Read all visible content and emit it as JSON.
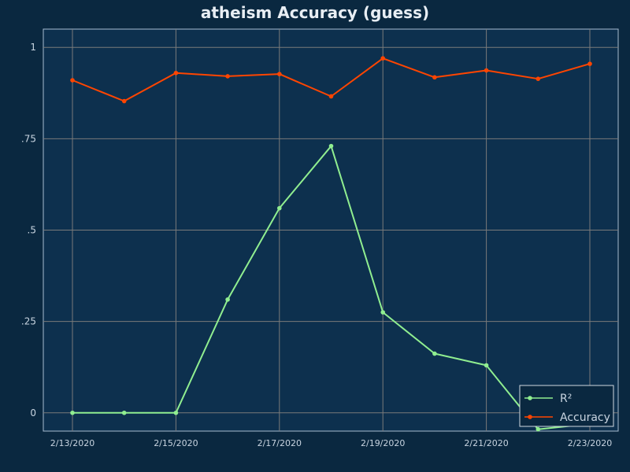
{
  "chart_data": {
    "type": "line",
    "title": "atheism Accuracy (guess)",
    "xlabel": "",
    "ylabel": "",
    "x": [
      "2/13/2020",
      "2/14/2020",
      "2/15/2020",
      "2/16/2020",
      "2/17/2020",
      "2/18/2020",
      "2/19/2020",
      "2/20/2020",
      "2/21/2020",
      "2/22/2020",
      "2/23/2020"
    ],
    "x_tick_labels": [
      "2/13/2020",
      "2/15/2020",
      "2/17/2020",
      "2/19/2020",
      "2/21/2020",
      "2/23/2020"
    ],
    "y_tick_values": [
      0,
      0.25,
      0.5,
      0.75,
      1
    ],
    "y_tick_labels": [
      "0",
      ".25",
      ".5",
      ".75",
      "1"
    ],
    "ylim": [
      -0.05,
      1.05
    ],
    "grid": true,
    "legend_position": "bottom-right",
    "series": [
      {
        "name": "R²",
        "color": "#90ee90",
        "values": [
          0,
          0,
          0,
          0.31,
          0.56,
          0.73,
          0.275,
          0.162,
          0.13,
          -0.045,
          -0.03
        ]
      },
      {
        "name": "Accuracy",
        "color": "#ff4500",
        "values": [
          0.91,
          0.853,
          0.93,
          0.921,
          0.927,
          0.866,
          0.97,
          0.918,
          0.937,
          0.914,
          0.955
        ]
      }
    ]
  },
  "colors": {
    "background": "#0a2840",
    "plot_background": "#0d304e",
    "grid": "#7a7a7a",
    "axis_text": "#c8d4e0",
    "legend_background": "#0a2840",
    "legend_border": "#d0d8e0"
  }
}
